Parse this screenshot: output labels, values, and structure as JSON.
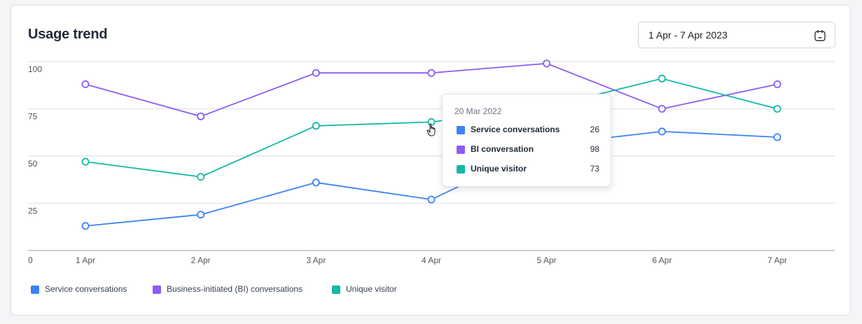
{
  "title": "Usage trend",
  "date_range": {
    "value": "1 Apr - 7 Apr 2023",
    "icon": "calendar-icon"
  },
  "chart_data": {
    "type": "line",
    "title": "Usage trend",
    "x": [
      "1 Apr",
      "2 Apr",
      "3 Apr",
      "4 Apr",
      "5 Apr",
      "6 Apr",
      "7 Apr"
    ],
    "ylim": [
      0,
      100
    ],
    "yticks": [
      "0",
      "25",
      "50",
      "75",
      "100"
    ],
    "grid": true,
    "legend": "bottom-left",
    "series": [
      {
        "name": "Service conversations",
        "color": "#3b82f6",
        "values": [
          13,
          19,
          36,
          27,
          56,
          63,
          60
        ]
      },
      {
        "name": "Business-initiated (BI) conversations",
        "color": "#8b5cf6",
        "values": [
          88,
          71,
          94,
          94,
          99,
          75,
          88
        ]
      },
      {
        "name": "Unique visitor",
        "color": "#14b8a6",
        "values": [
          47,
          39,
          66,
          68,
          76,
          91,
          75
        ]
      }
    ]
  },
  "tooltip": {
    "date": "20 Mar 2022",
    "rows": [
      {
        "label": "Service conversations",
        "value": "26",
        "color": "#3b82f6"
      },
      {
        "label": "BI conversation",
        "value": "98",
        "color": "#8b5cf6"
      },
      {
        "label": "Unique visitor",
        "value": "73",
        "color": "#14b8a6"
      }
    ]
  },
  "legend": [
    {
      "label": "Service conversations",
      "color": "#3b82f6"
    },
    {
      "label": "Business-initiated (BI) conversations",
      "color": "#8b5cf6"
    },
    {
      "label": "Unique visitor",
      "color": "#14b8a6"
    }
  ]
}
